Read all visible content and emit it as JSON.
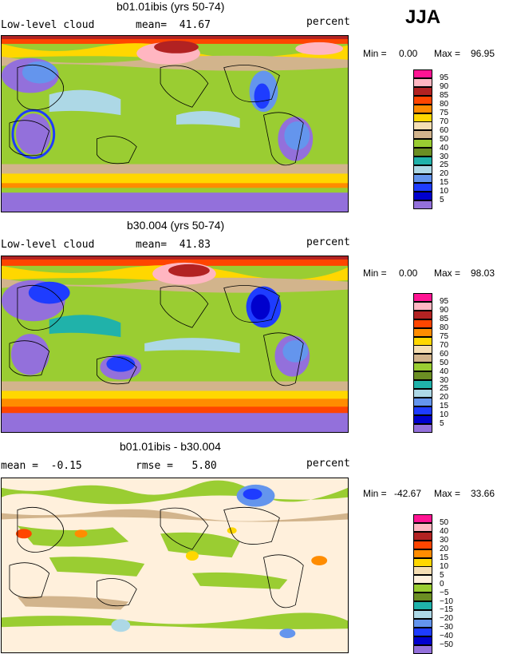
{
  "season": "JJA",
  "panels": [
    {
      "title": "b01.01ibis (yrs 50-74)",
      "left_label": "Low-level cloud",
      "mid_label": "mean=  41.67",
      "right_label": "percent",
      "min_label": "Min =",
      "min_value": "0.00",
      "max_label": "Max =",
      "max_value": "96.95",
      "legend": {
        "colors": [
          "#ff1493",
          "#ffb6c1",
          "#b22222",
          "#ff4500",
          "#ff8c00",
          "#ffd700",
          "#f5deb3",
          "#d2b48c",
          "#9acd32",
          "#6b8e23",
          "#20b2aa",
          "#add8e6",
          "#6495ed",
          "#1e3cff",
          "#0000cd",
          "#9370db"
        ],
        "labels": [
          "95",
          "90",
          "85",
          "80",
          "75",
          "70",
          "60",
          "50",
          "40",
          "30",
          "25",
          "20",
          "15",
          "10",
          "5"
        ]
      }
    },
    {
      "title": "b30.004 (yrs 50-74)",
      "left_label": "Low-level cloud",
      "mid_label": "mean=  41.83",
      "right_label": "percent",
      "min_label": "Min =",
      "min_value": "0.00",
      "max_label": "Max =",
      "max_value": "98.03",
      "legend": {
        "colors": [
          "#ff1493",
          "#ffb6c1",
          "#b22222",
          "#ff4500",
          "#ff8c00",
          "#ffd700",
          "#f5deb3",
          "#d2b48c",
          "#9acd32",
          "#6b8e23",
          "#20b2aa",
          "#add8e6",
          "#6495ed",
          "#1e3cff",
          "#0000cd",
          "#9370db"
        ],
        "labels": [
          "95",
          "90",
          "85",
          "80",
          "75",
          "70",
          "60",
          "50",
          "40",
          "30",
          "25",
          "20",
          "15",
          "10",
          "5"
        ]
      }
    },
    {
      "title": "b01.01ibis - b30.004",
      "left_label": "mean =  -0.15",
      "mid_label": "rmse =   5.80",
      "right_label": "percent",
      "min_label": "Min =",
      "min_value": "-42.67",
      "max_label": "Max =",
      "max_value": "33.66",
      "legend": {
        "colors": [
          "#ff1493",
          "#ffb6c1",
          "#b22222",
          "#ff4500",
          "#ff8c00",
          "#ffd700",
          "#f5deb3",
          "#fff0dc",
          "#9acd32",
          "#6b8e23",
          "#20b2aa",
          "#add8e6",
          "#6495ed",
          "#1e3cff",
          "#0000cd",
          "#9370db"
        ],
        "labels": [
          "50",
          "40",
          "30",
          "20",
          "15",
          "10",
          "5",
          "0",
          "−5",
          "−10",
          "−15",
          "−20",
          "−30",
          "−40",
          "−50"
        ]
      }
    }
  ]
}
